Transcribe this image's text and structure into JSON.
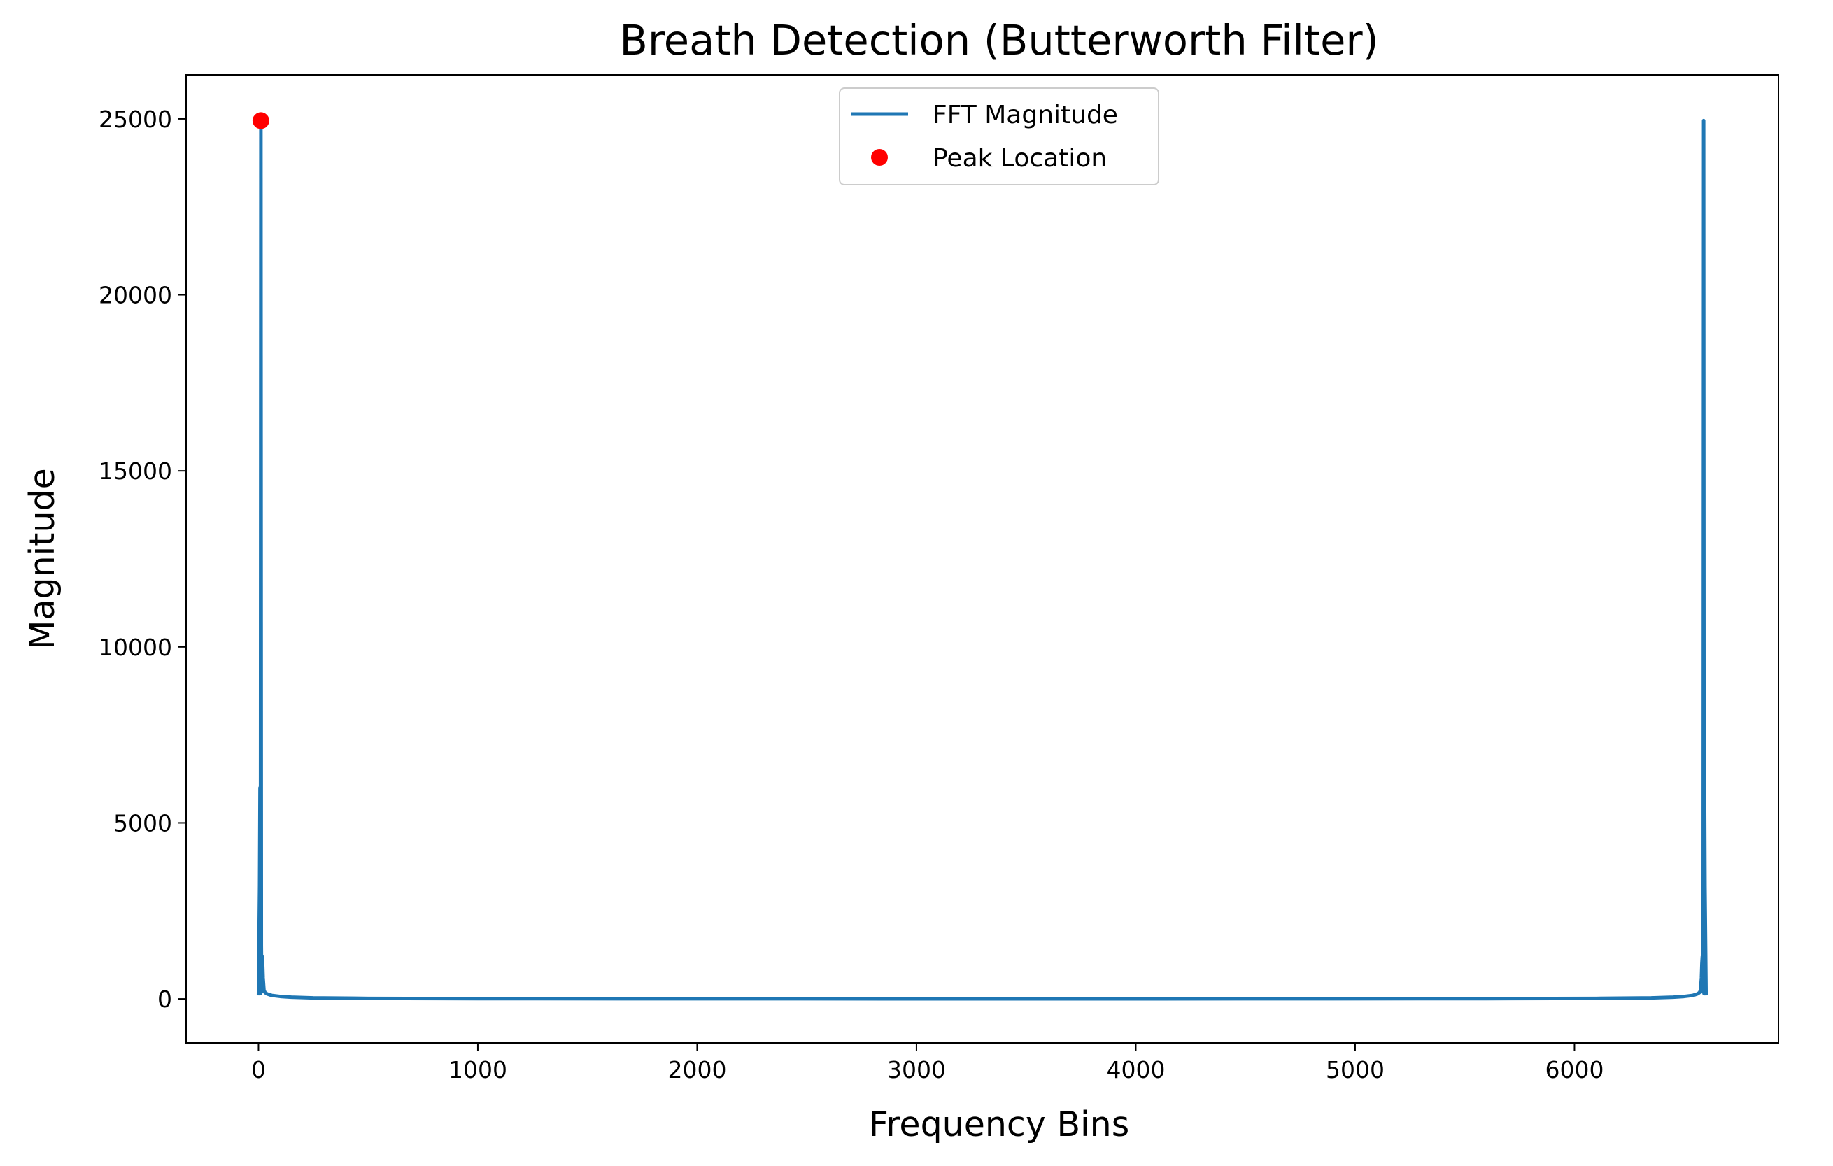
{
  "chart_data": {
    "type": "line",
    "title": "Breath Detection (Butterworth Filter)",
    "xlabel": "Frequency Bins",
    "ylabel": "Magnitude",
    "xlim": [
      -330,
      6930
    ],
    "ylim": [
      -1250,
      26250
    ],
    "xticks": [
      0,
      1000,
      2000,
      3000,
      4000,
      5000,
      6000
    ],
    "yticks": [
      0,
      5000,
      10000,
      15000,
      20000,
      25000
    ],
    "xtick_labels": [
      "0",
      "1000",
      "2000",
      "3000",
      "4000",
      "5000",
      "6000"
    ],
    "ytick_labels": [
      "0",
      "5000",
      "10000",
      "15000",
      "20000",
      "25000"
    ],
    "grid": false,
    "legend_position": "top-center",
    "series": [
      {
        "name": "FFT Magnitude",
        "color": "#1f77b4",
        "marker": "line",
        "points": [
          [
            0,
            100
          ],
          [
            5,
            3200
          ],
          [
            7,
            6000
          ],
          [
            9,
            150
          ],
          [
            11,
            24950
          ],
          [
            13,
            1500
          ],
          [
            15,
            200
          ],
          [
            17,
            1200
          ],
          [
            19,
            1000
          ],
          [
            21,
            600
          ],
          [
            25,
            250
          ],
          [
            30,
            180
          ],
          [
            40,
            140
          ],
          [
            60,
            100
          ],
          [
            100,
            70
          ],
          [
            150,
            50
          ],
          [
            250,
            30
          ],
          [
            500,
            15
          ],
          [
            1000,
            8
          ],
          [
            2000,
            4
          ],
          [
            3000,
            2
          ],
          [
            3300,
            2
          ],
          [
            3600,
            2
          ],
          [
            4600,
            4
          ],
          [
            5600,
            8
          ],
          [
            6100,
            15
          ],
          [
            6350,
            30
          ],
          [
            6450,
            50
          ],
          [
            6500,
            70
          ],
          [
            6540,
            100
          ],
          [
            6560,
            140
          ],
          [
            6570,
            180
          ],
          [
            6575,
            250
          ],
          [
            6579,
            600
          ],
          [
            6581,
            1000
          ],
          [
            6583,
            1200
          ],
          [
            6585,
            200
          ],
          [
            6587,
            1500
          ],
          [
            6589,
            24950
          ],
          [
            6591,
            150
          ],
          [
            6593,
            6000
          ],
          [
            6595,
            3200
          ],
          [
            6600,
            100
          ]
        ]
      },
      {
        "name": "Peak Location",
        "color": "#ff0000",
        "marker": "point",
        "points": [
          [
            11,
            24950
          ]
        ]
      }
    ]
  }
}
